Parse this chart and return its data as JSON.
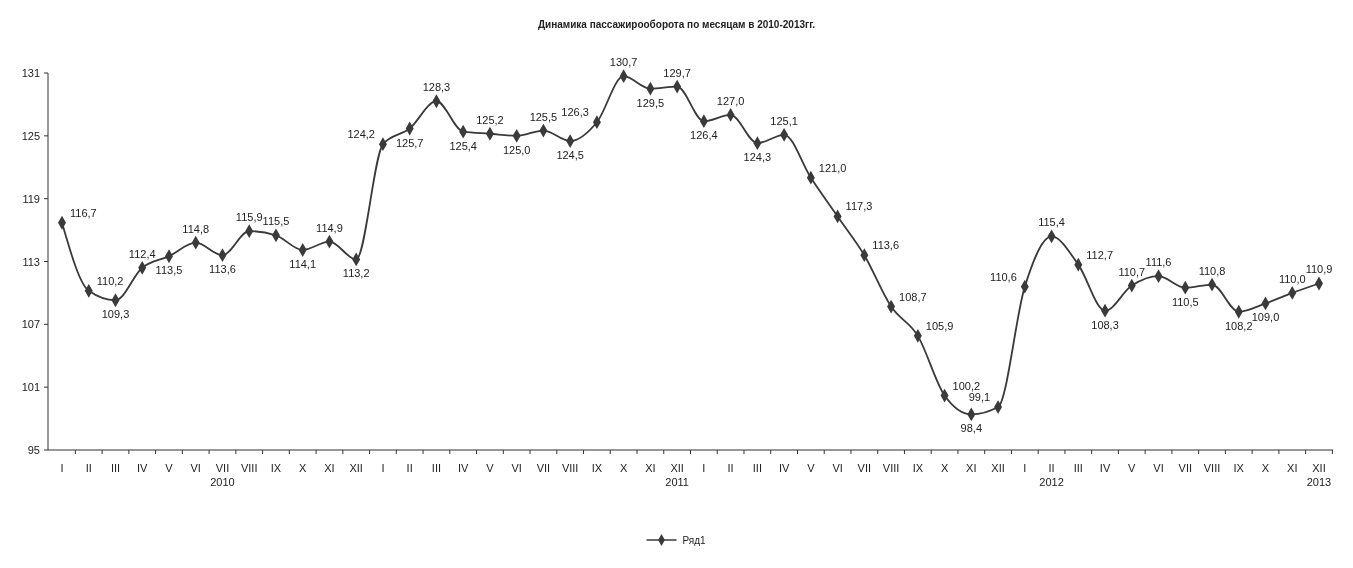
{
  "chart_data": {
    "type": "line",
    "title": "Динамика пассажирооборота по месяцам в 2010-2013гг.",
    "categories": [
      "I",
      "II",
      "III",
      "IV",
      "V",
      "VI",
      "VII\n2010",
      "VIII",
      "IX",
      "X",
      "XI",
      "XII",
      "I",
      "II",
      "III",
      "IV",
      "V",
      "VI",
      "VII",
      "VIII",
      "IX",
      "X",
      "XI",
      "XII\n2011",
      "I",
      "II",
      "III",
      "IV",
      "V",
      "VI",
      "VII",
      "VIII",
      "IX",
      "X",
      "XI",
      "XII",
      "I",
      "II\n2012",
      "III",
      "IV",
      "V",
      "VI",
      "VII",
      "VIII",
      "IX",
      "X",
      "XI",
      "XII\n2013"
    ],
    "series": [
      {
        "name": "Ряд1",
        "color": "#3a3a3a",
        "values": [
          116.7,
          110.2,
          109.3,
          112.4,
          113.5,
          114.8,
          113.6,
          115.9,
          115.5,
          114.1,
          114.9,
          113.2,
          124.2,
          125.7,
          128.3,
          125.4,
          125.2,
          125.0,
          125.5,
          124.5,
          126.3,
          130.7,
          129.5,
          129.7,
          126.4,
          127.0,
          124.3,
          125.1,
          121.0,
          117.3,
          113.6,
          108.7,
          105.9,
          100.2,
          98.4,
          99.1,
          110.6,
          115.4,
          112.7,
          108.3,
          110.7,
          111.6,
          110.5,
          110.8,
          108.2,
          109.0,
          110.0,
          110.9
        ]
      }
    ],
    "value_labels": [
      "116,7",
      "110,2",
      "109,3",
      "112,4",
      "113,5",
      "114,8",
      "113,6",
      "115,9",
      "115,5",
      "114,1",
      "114,9",
      "113,2",
      "124,2",
      "125,7",
      "128,3",
      "125,4",
      "125,2",
      "125,0",
      "125,5",
      "124,5",
      "126,3",
      "130,7",
      "129,5",
      "129,7",
      "126,4",
      "127,0",
      "124,3",
      "125,1",
      "121,0",
      "117,3",
      "113,6",
      "108,7",
      "105,9",
      "100,2",
      "98,4",
      "99,1",
      "110,6",
      "115,4",
      "112,7",
      "108,3",
      "110,7",
      "111,6",
      "110,5",
      "110,8",
      "108,2",
      "109,0",
      "110,0",
      "110,9"
    ],
    "ylim": [
      95,
      131
    ],
    "yticks": [
      95,
      101,
      107,
      113,
      119,
      125,
      131
    ],
    "grid": false,
    "legend": "bottom",
    "marker": "diamond",
    "line_style": "solid"
  }
}
